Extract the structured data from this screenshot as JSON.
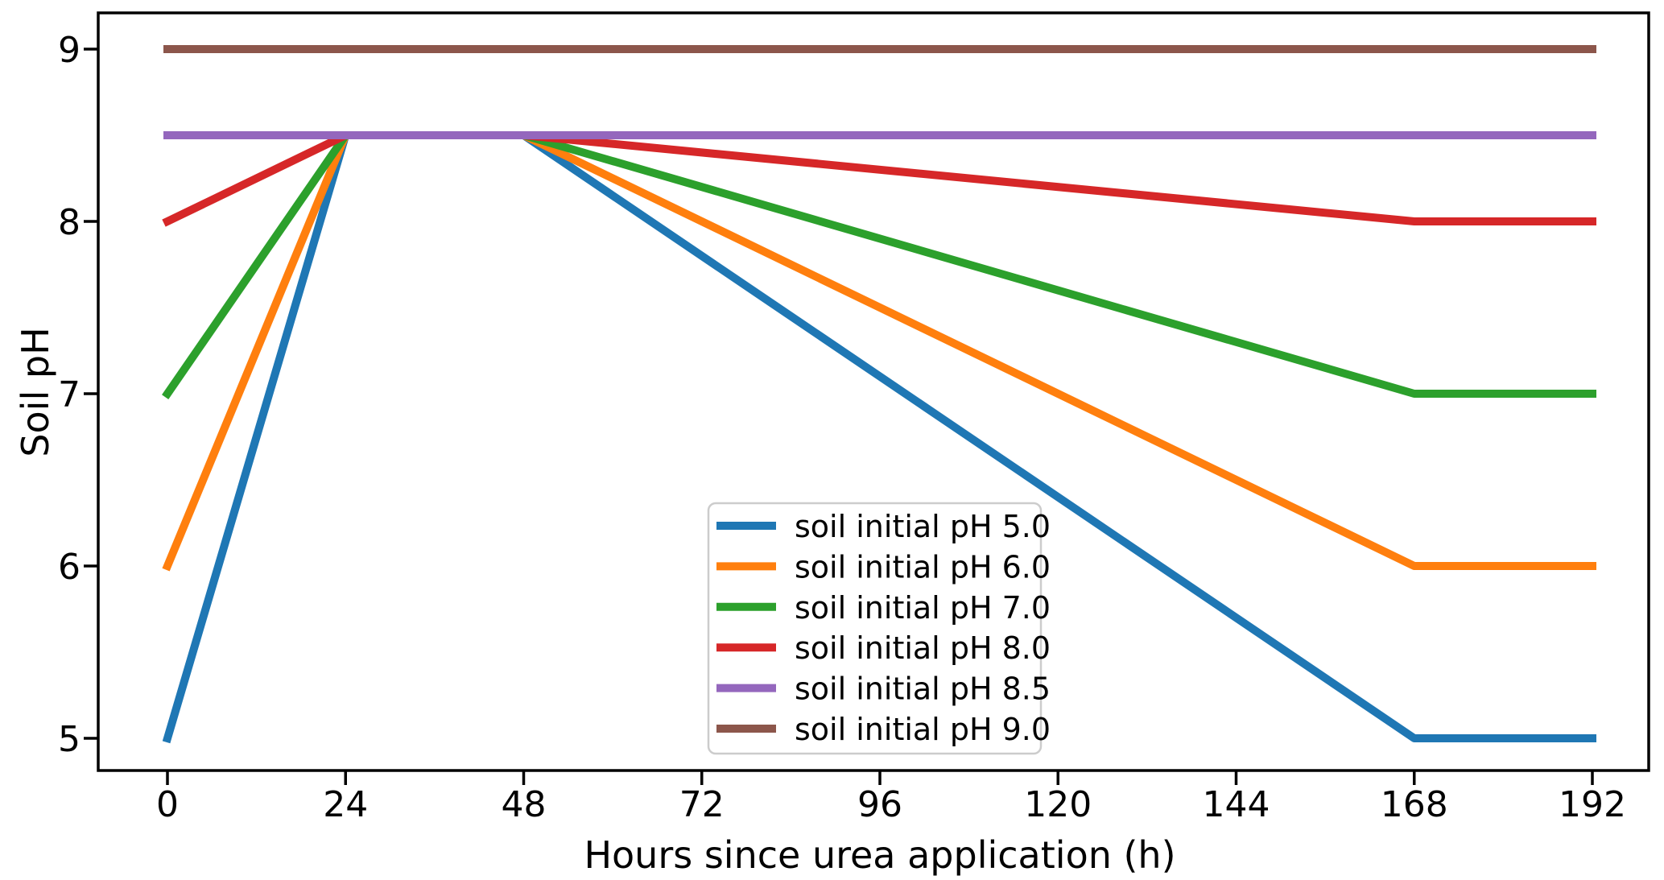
{
  "chart_data": {
    "type": "line",
    "title": "",
    "xlabel": "Hours since urea application (h)",
    "ylabel": "Soil pH",
    "x_ticks": [
      0,
      24,
      48,
      72,
      96,
      120,
      144,
      168,
      192
    ],
    "y_ticks": [
      5,
      6,
      7,
      8,
      9
    ],
    "xlim": [
      -9.6,
      201.6
    ],
    "ylim": [
      4.8,
      9.2
    ],
    "grid": false,
    "legend": {
      "location": "lower center",
      "border_color": "#cccccc",
      "background": "#ffffff",
      "entries": [
        "soil initial pH 5.0",
        "soil initial pH 6.0",
        "soil initial pH 7.0",
        "soil initial pH 8.0",
        "soil initial pH 8.5",
        "soil initial pH 9.0"
      ]
    },
    "style": {
      "spine_color": "#000000",
      "text_color": "#000000",
      "background": "#ffffff"
    },
    "series": [
      {
        "name": "soil initial pH 5.0",
        "color": "#1f77b4",
        "x": [
          0,
          24,
          48,
          168,
          192
        ],
        "values": [
          5.0,
          8.5,
          8.5,
          5.0,
          5.0
        ]
      },
      {
        "name": "soil initial pH 6.0",
        "color": "#ff7f0e",
        "x": [
          0,
          24,
          48,
          168,
          192
        ],
        "values": [
          6.0,
          8.5,
          8.5,
          6.0,
          6.0
        ]
      },
      {
        "name": "soil initial pH 7.0",
        "color": "#2ca02c",
        "x": [
          0,
          24,
          48,
          168,
          192
        ],
        "values": [
          7.0,
          8.5,
          8.5,
          7.0,
          7.0
        ]
      },
      {
        "name": "soil initial pH 8.0",
        "color": "#d62728",
        "x": [
          0,
          24,
          48,
          168,
          192
        ],
        "values": [
          8.0,
          8.5,
          8.5,
          8.0,
          8.0
        ]
      },
      {
        "name": "soil initial pH 8.5",
        "color": "#9467bd",
        "x": [
          0,
          24,
          48,
          168,
          192
        ],
        "values": [
          8.5,
          8.5,
          8.5,
          8.5,
          8.5
        ]
      },
      {
        "name": "soil initial pH 9.0",
        "color": "#8c564b",
        "x": [
          0,
          24,
          48,
          168,
          192
        ],
        "values": [
          9.0,
          9.0,
          9.0,
          9.0,
          9.0
        ]
      }
    ]
  }
}
